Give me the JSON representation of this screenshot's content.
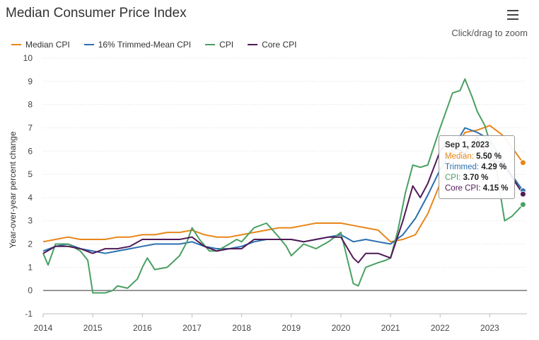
{
  "header": {
    "title": "Median Consumer Price Index",
    "zoom_hint": "Click/drag to zoom"
  },
  "colors": {
    "median": "#e8861a",
    "trimmed": "#2b6fb0",
    "cpi": "#4aa063",
    "core": "#4f1a56",
    "grid": "#d8d8d8",
    "zero_line": "#777777"
  },
  "menu": {
    "icon": "hamburger-menu-icon"
  },
  "tooltip": {
    "date": "Sep 1, 2023",
    "rows": [
      {
        "label": "Median:",
        "value": "5.50 %",
        "color": "#e8861a"
      },
      {
        "label": "Trimmed:",
        "value": "4.29 %",
        "color": "#2b6fb0"
      },
      {
        "label": "CPI:",
        "value": "3.70 %",
        "color": "#4aa063"
      },
      {
        "label": "Core CPI:",
        "value": "4.15 %",
        "color": "#4f1a56"
      }
    ]
  },
  "chart_data": {
    "type": "line",
    "title": "Median Consumer Price Index",
    "xlabel": "",
    "ylabel": "Year-over-year percent change",
    "xlim": [
      2014.0,
      2023.75
    ],
    "ylim": [
      -1,
      10
    ],
    "x_ticks": [
      "2014",
      "2015",
      "2016",
      "2017",
      "2018",
      "2019",
      "2020",
      "2021",
      "2022",
      "2023"
    ],
    "y_ticks": [
      "-1",
      "0",
      "1",
      "2",
      "3",
      "4",
      "5",
      "6",
      "7",
      "8",
      "9",
      "10"
    ],
    "grid": true,
    "legend_position": "top-left",
    "series": [
      {
        "name": "Median CPI",
        "color": "#e8861a",
        "points": [
          [
            2014.0,
            2.1
          ],
          [
            2014.25,
            2.2
          ],
          [
            2014.5,
            2.3
          ],
          [
            2014.75,
            2.2
          ],
          [
            2015.0,
            2.2
          ],
          [
            2015.25,
            2.2
          ],
          [
            2015.5,
            2.3
          ],
          [
            2015.75,
            2.3
          ],
          [
            2016.0,
            2.4
          ],
          [
            2016.25,
            2.4
          ],
          [
            2016.5,
            2.5
          ],
          [
            2016.75,
            2.5
          ],
          [
            2017.0,
            2.6
          ],
          [
            2017.25,
            2.4
          ],
          [
            2017.5,
            2.3
          ],
          [
            2017.75,
            2.3
          ],
          [
            2018.0,
            2.4
          ],
          [
            2018.25,
            2.5
          ],
          [
            2018.5,
            2.6
          ],
          [
            2018.75,
            2.7
          ],
          [
            2019.0,
            2.7
          ],
          [
            2019.25,
            2.8
          ],
          [
            2019.5,
            2.9
          ],
          [
            2019.75,
            2.9
          ],
          [
            2020.0,
            2.9
          ],
          [
            2020.25,
            2.8
          ],
          [
            2020.5,
            2.7
          ],
          [
            2020.75,
            2.6
          ],
          [
            2021.0,
            2.1
          ],
          [
            2021.25,
            2.2
          ],
          [
            2021.5,
            2.4
          ],
          [
            2021.75,
            3.3
          ],
          [
            2022.0,
            4.6
          ],
          [
            2022.25,
            5.9
          ],
          [
            2022.5,
            6.8
          ],
          [
            2022.75,
            6.9
          ],
          [
            2023.0,
            7.1
          ],
          [
            2023.25,
            6.7
          ],
          [
            2023.5,
            6.0
          ],
          [
            2023.67,
            5.5
          ]
        ]
      },
      {
        "name": "16% Trimmed-Mean CPI",
        "color": "#2b6fb0",
        "points": [
          [
            2014.0,
            1.7
          ],
          [
            2014.25,
            1.9
          ],
          [
            2014.5,
            2.0
          ],
          [
            2014.75,
            1.8
          ],
          [
            2015.0,
            1.7
          ],
          [
            2015.25,
            1.6
          ],
          [
            2015.5,
            1.7
          ],
          [
            2015.75,
            1.8
          ],
          [
            2016.0,
            1.9
          ],
          [
            2016.25,
            2.0
          ],
          [
            2016.5,
            2.0
          ],
          [
            2016.75,
            2.0
          ],
          [
            2017.0,
            2.1
          ],
          [
            2017.25,
            1.9
          ],
          [
            2017.5,
            1.8
          ],
          [
            2017.75,
            1.8
          ],
          [
            2018.0,
            1.9
          ],
          [
            2018.25,
            2.1
          ],
          [
            2018.5,
            2.2
          ],
          [
            2018.75,
            2.2
          ],
          [
            2019.0,
            2.2
          ],
          [
            2019.25,
            2.1
          ],
          [
            2019.5,
            2.2
          ],
          [
            2019.75,
            2.3
          ],
          [
            2020.0,
            2.4
          ],
          [
            2020.25,
            2.1
          ],
          [
            2020.5,
            2.2
          ],
          [
            2020.75,
            2.1
          ],
          [
            2021.0,
            2.0
          ],
          [
            2021.25,
            2.4
          ],
          [
            2021.5,
            3.1
          ],
          [
            2021.75,
            4.1
          ],
          [
            2022.0,
            5.2
          ],
          [
            2022.25,
            6.1
          ],
          [
            2022.5,
            7.0
          ],
          [
            2022.75,
            6.8
          ],
          [
            2023.0,
            6.5
          ],
          [
            2023.25,
            5.6
          ],
          [
            2023.5,
            4.8
          ],
          [
            2023.67,
            4.29
          ]
        ]
      },
      {
        "name": "CPI",
        "color": "#4aa063",
        "points": [
          [
            2014.0,
            1.6
          ],
          [
            2014.1,
            1.1
          ],
          [
            2014.25,
            2.0
          ],
          [
            2014.5,
            2.0
          ],
          [
            2014.75,
            1.7
          ],
          [
            2014.9,
            1.3
          ],
          [
            2015.0,
            -0.1
          ],
          [
            2015.25,
            -0.1
          ],
          [
            2015.4,
            0.0
          ],
          [
            2015.5,
            0.2
          ],
          [
            2015.7,
            0.1
          ],
          [
            2015.9,
            0.5
          ],
          [
            2016.0,
            1.0
          ],
          [
            2016.1,
            1.4
          ],
          [
            2016.25,
            0.9
          ],
          [
            2016.5,
            1.0
          ],
          [
            2016.75,
            1.5
          ],
          [
            2016.9,
            2.1
          ],
          [
            2017.0,
            2.7
          ],
          [
            2017.15,
            2.2
          ],
          [
            2017.35,
            1.7
          ],
          [
            2017.5,
            1.7
          ],
          [
            2017.75,
            2.0
          ],
          [
            2017.9,
            2.2
          ],
          [
            2018.0,
            2.1
          ],
          [
            2018.25,
            2.7
          ],
          [
            2018.5,
            2.9
          ],
          [
            2018.75,
            2.3
          ],
          [
            2018.9,
            1.9
          ],
          [
            2019.0,
            1.5
          ],
          [
            2019.25,
            2.0
          ],
          [
            2019.5,
            1.8
          ],
          [
            2019.75,
            2.1
          ],
          [
            2020.0,
            2.5
          ],
          [
            2020.25,
            0.3
          ],
          [
            2020.35,
            0.2
          ],
          [
            2020.5,
            1.0
          ],
          [
            2020.75,
            1.2
          ],
          [
            2020.9,
            1.3
          ],
          [
            2021.0,
            1.4
          ],
          [
            2021.15,
            2.6
          ],
          [
            2021.3,
            4.2
          ],
          [
            2021.45,
            5.4
          ],
          [
            2021.6,
            5.3
          ],
          [
            2021.75,
            5.4
          ],
          [
            2022.0,
            7.0
          ],
          [
            2022.15,
            7.9
          ],
          [
            2022.25,
            8.5
          ],
          [
            2022.4,
            8.6
          ],
          [
            2022.5,
            9.1
          ],
          [
            2022.65,
            8.3
          ],
          [
            2022.75,
            7.7
          ],
          [
            2022.9,
            7.1
          ],
          [
            2023.0,
            6.4
          ],
          [
            2023.15,
            5.0
          ],
          [
            2023.3,
            3.0
          ],
          [
            2023.45,
            3.2
          ],
          [
            2023.67,
            3.7
          ]
        ]
      },
      {
        "name": "Core CPI",
        "color": "#4f1a56",
        "points": [
          [
            2014.0,
            1.6
          ],
          [
            2014.25,
            1.9
          ],
          [
            2014.5,
            1.9
          ],
          [
            2014.75,
            1.8
          ],
          [
            2015.0,
            1.6
          ],
          [
            2015.25,
            1.8
          ],
          [
            2015.5,
            1.8
          ],
          [
            2015.75,
            1.9
          ],
          [
            2016.0,
            2.2
          ],
          [
            2016.25,
            2.2
          ],
          [
            2016.5,
            2.2
          ],
          [
            2016.75,
            2.2
          ],
          [
            2017.0,
            2.3
          ],
          [
            2017.25,
            1.9
          ],
          [
            2017.5,
            1.7
          ],
          [
            2017.75,
            1.8
          ],
          [
            2018.0,
            1.8
          ],
          [
            2018.25,
            2.2
          ],
          [
            2018.5,
            2.2
          ],
          [
            2018.75,
            2.2
          ],
          [
            2019.0,
            2.2
          ],
          [
            2019.25,
            2.1
          ],
          [
            2019.5,
            2.2
          ],
          [
            2019.75,
            2.3
          ],
          [
            2020.0,
            2.3
          ],
          [
            2020.25,
            1.4
          ],
          [
            2020.35,
            1.2
          ],
          [
            2020.5,
            1.6
          ],
          [
            2020.75,
            1.6
          ],
          [
            2021.0,
            1.4
          ],
          [
            2021.25,
            3.0
          ],
          [
            2021.45,
            4.5
          ],
          [
            2021.6,
            4.0
          ],
          [
            2021.75,
            4.6
          ],
          [
            2022.0,
            6.0
          ],
          [
            2022.15,
            6.4
          ],
          [
            2022.25,
            6.2
          ],
          [
            2022.5,
            5.9
          ],
          [
            2022.75,
            6.6
          ],
          [
            2023.0,
            5.6
          ],
          [
            2023.25,
            5.5
          ],
          [
            2023.5,
            4.7
          ],
          [
            2023.67,
            4.15
          ]
        ]
      }
    ]
  }
}
